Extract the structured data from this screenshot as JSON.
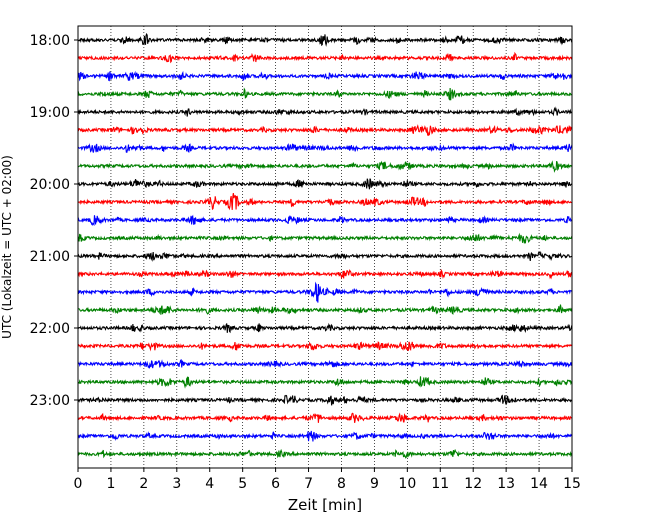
{
  "chart_data": {
    "type": "line",
    "title": "",
    "xlabel": "Zeit  [min]",
    "ylabel": "UTC (Lokalzeit = UTC + 02:00)",
    "xlim": [
      0,
      15
    ],
    "x_ticks": [
      0,
      1,
      2,
      3,
      4,
      5,
      6,
      7,
      8,
      9,
      10,
      11,
      12,
      13,
      14,
      15
    ],
    "x_tick_labels": [
      "0",
      "1",
      "2",
      "3",
      "4",
      "5",
      "6",
      "7",
      "8",
      "9",
      "10",
      "11",
      "12",
      "13",
      "14",
      "15"
    ],
    "y_tick_labels": [
      "18:00",
      "19:00",
      "20:00",
      "21:00",
      "22:00",
      "23:00"
    ],
    "x_grid": true,
    "grid_style": "dotted",
    "row_interval_min": 15,
    "rows": [
      {
        "start": "18:00",
        "color": "#000000"
      },
      {
        "start": "18:15",
        "color": "#ff0000"
      },
      {
        "start": "18:30",
        "color": "#0000ff"
      },
      {
        "start": "18:45",
        "color": "#008000"
      },
      {
        "start": "19:00",
        "color": "#000000"
      },
      {
        "start": "19:15",
        "color": "#ff0000"
      },
      {
        "start": "19:30",
        "color": "#0000ff"
      },
      {
        "start": "19:45",
        "color": "#008000"
      },
      {
        "start": "20:00",
        "color": "#000000"
      },
      {
        "start": "20:15",
        "color": "#ff0000"
      },
      {
        "start": "20:30",
        "color": "#0000ff"
      },
      {
        "start": "20:45",
        "color": "#008000"
      },
      {
        "start": "21:00",
        "color": "#000000"
      },
      {
        "start": "21:15",
        "color": "#ff0000"
      },
      {
        "start": "21:30",
        "color": "#0000ff"
      },
      {
        "start": "21:45",
        "color": "#008000"
      },
      {
        "start": "22:00",
        "color": "#000000"
      },
      {
        "start": "22:15",
        "color": "#ff0000"
      },
      {
        "start": "22:30",
        "color": "#0000ff"
      },
      {
        "start": "22:45",
        "color": "#008000"
      },
      {
        "start": "23:00",
        "color": "#000000"
      },
      {
        "start": "23:15",
        "color": "#ff0000"
      },
      {
        "start": "23:30",
        "color": "#0000ff"
      },
      {
        "start": "23:45",
        "color": "#008000"
      }
    ],
    "colors": {
      "black": "#000000",
      "red": "#ff0000",
      "blue": "#0000ff",
      "green": "#008000"
    }
  }
}
